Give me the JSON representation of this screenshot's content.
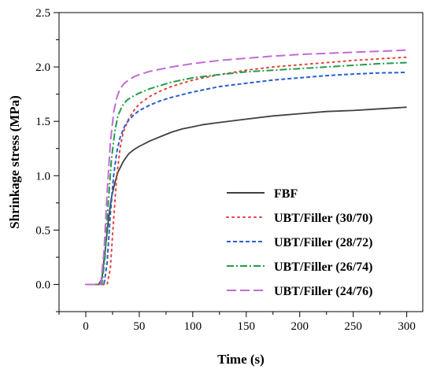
{
  "chart_data": {
    "type": "line",
    "xlabel": "Time (s)",
    "ylabel": "Shrinkage stress (MPa)",
    "xlim": [
      -25,
      315
    ],
    "ylim": [
      -0.25,
      2.5
    ],
    "xticks": [
      0,
      50,
      100,
      150,
      200,
      250,
      300
    ],
    "yticks": [
      0.0,
      0.5,
      1.0,
      1.5,
      2.0,
      2.5
    ],
    "xtick_labels": [
      "0",
      "50",
      "100",
      "150",
      "200",
      "250",
      "300"
    ],
    "ytick_labels": [
      "0.0",
      "0.5",
      "1.0",
      "1.5",
      "2.0",
      "2.5"
    ],
    "grid": false,
    "legend_position": "bottom-right",
    "series": [
      {
        "name": "FBF",
        "color": "#404040",
        "dash": "solid",
        "x": [
          0,
          12,
          15,
          18,
          21,
          24,
          27,
          30,
          35,
          40,
          45,
          50,
          60,
          70,
          80,
          90,
          100,
          110,
          125,
          150,
          175,
          200,
          225,
          250,
          275,
          300
        ],
        "y": [
          0.0,
          0.0,
          0.05,
          0.3,
          0.58,
          0.8,
          0.93,
          1.03,
          1.13,
          1.2,
          1.24,
          1.27,
          1.32,
          1.36,
          1.4,
          1.43,
          1.45,
          1.47,
          1.49,
          1.52,
          1.55,
          1.57,
          1.59,
          1.6,
          1.615,
          1.63
        ]
      },
      {
        "name": "UBT/Filler (30/70)",
        "color": "#e8403a",
        "dash": "dotted",
        "x": [
          0,
          20,
          23,
          26,
          29,
          32,
          35,
          40,
          45,
          50,
          60,
          70,
          80,
          100,
          125,
          150,
          175,
          200,
          225,
          250,
          275,
          300
        ],
        "y": [
          0.0,
          0.0,
          0.15,
          0.6,
          1.0,
          1.25,
          1.4,
          1.52,
          1.6,
          1.66,
          1.73,
          1.78,
          1.82,
          1.88,
          1.93,
          1.97,
          2.0,
          2.02,
          2.04,
          2.06,
          2.075,
          2.09
        ]
      },
      {
        "name": "UBT/Filler (28/72)",
        "color": "#2a5fd0",
        "dash": "dashed",
        "x": [
          0,
          17,
          20,
          23,
          26,
          29,
          32,
          36,
          40,
          45,
          50,
          60,
          70,
          80,
          100,
          125,
          150,
          175,
          200,
          225,
          250,
          275,
          300
        ],
        "y": [
          0.0,
          0.0,
          0.2,
          0.65,
          1.0,
          1.22,
          1.35,
          1.45,
          1.51,
          1.56,
          1.6,
          1.65,
          1.69,
          1.72,
          1.77,
          1.82,
          1.85,
          1.88,
          1.9,
          1.92,
          1.935,
          1.945,
          1.95
        ]
      },
      {
        "name": "UBT/Filler (26/74)",
        "color": "#1f9e4a",
        "dash": "dashdot",
        "x": [
          0,
          15,
          18,
          21,
          24,
          27,
          30,
          34,
          38,
          42,
          50,
          60,
          70,
          80,
          100,
          125,
          150,
          175,
          200,
          225,
          250,
          275,
          300
        ],
        "y": [
          0.0,
          0.0,
          0.25,
          0.75,
          1.15,
          1.4,
          1.55,
          1.64,
          1.69,
          1.72,
          1.76,
          1.8,
          1.83,
          1.86,
          1.9,
          1.93,
          1.955,
          1.97,
          1.985,
          2.0,
          2.015,
          2.03,
          2.04
        ]
      },
      {
        "name": "UBT/Filler (24/76)",
        "color": "#c46ad8",
        "dash": "longdash",
        "x": [
          0,
          14,
          17,
          20,
          23,
          26,
          29,
          32,
          36,
          40,
          45,
          50,
          60,
          70,
          80,
          100,
          125,
          150,
          175,
          200,
          225,
          250,
          275,
          300
        ],
        "y": [
          0.0,
          0.0,
          0.3,
          0.85,
          1.3,
          1.58,
          1.72,
          1.8,
          1.85,
          1.88,
          1.91,
          1.93,
          1.96,
          1.98,
          2.0,
          2.03,
          2.06,
          2.08,
          2.1,
          2.115,
          2.125,
          2.135,
          2.145,
          2.155
        ]
      }
    ]
  }
}
